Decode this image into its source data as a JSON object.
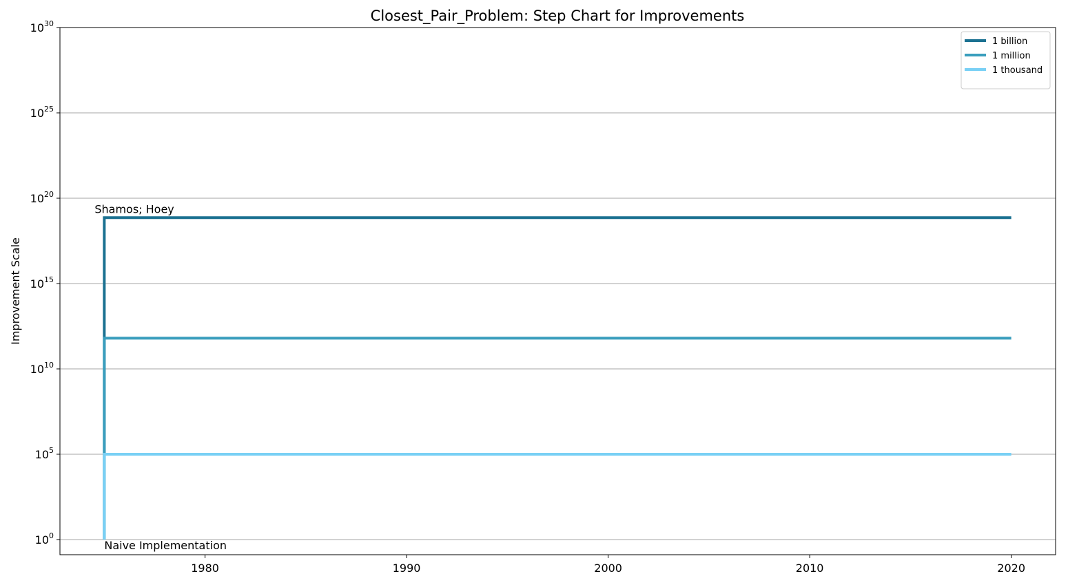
{
  "chart_data": {
    "type": "line",
    "step": "post",
    "title": "Closest_Pair_Problem: Step Chart for Improvements",
    "xlabel": "",
    "ylabel": "Improvement Scale",
    "xlim": [
      1972.8,
      2022.2
    ],
    "ylim_log10": [
      0,
      30
    ],
    "yscale": "log",
    "ytick_base": "10",
    "ytick_exponents": [
      "0",
      "5",
      "10",
      "15",
      "20",
      "25",
      "30"
    ],
    "xticks": [
      1980,
      1990,
      2000,
      2010,
      2020
    ],
    "xtick_labels": [
      "1980",
      "1990",
      "2000",
      "2010",
      "2020"
    ],
    "grid": "y-major",
    "legend_position": "top-right",
    "series": [
      {
        "name": "1 billion",
        "color": "#1b7191",
        "x": [
          1975,
          1975,
          2020
        ],
        "y_log10": [
          0,
          18.86,
          18.86
        ]
      },
      {
        "name": "1 million",
        "color": "#3a9ebd",
        "x": [
          1975,
          1975,
          2020
        ],
        "y_log10": [
          0,
          11.8,
          11.8
        ]
      },
      {
        "name": "1 thousand",
        "color": "#79d0f5",
        "x": [
          1975,
          1975,
          2020
        ],
        "y_log10": [
          0,
          5,
          5
        ]
      }
    ],
    "annotations": [
      {
        "text": "Shamos; Hoey",
        "x": 1975,
        "y_log10": 18.86,
        "anchor": "above-left"
      },
      {
        "text": "Naive Implementation",
        "x": 1975,
        "y_log10": 0,
        "anchor": "below-right"
      }
    ]
  }
}
